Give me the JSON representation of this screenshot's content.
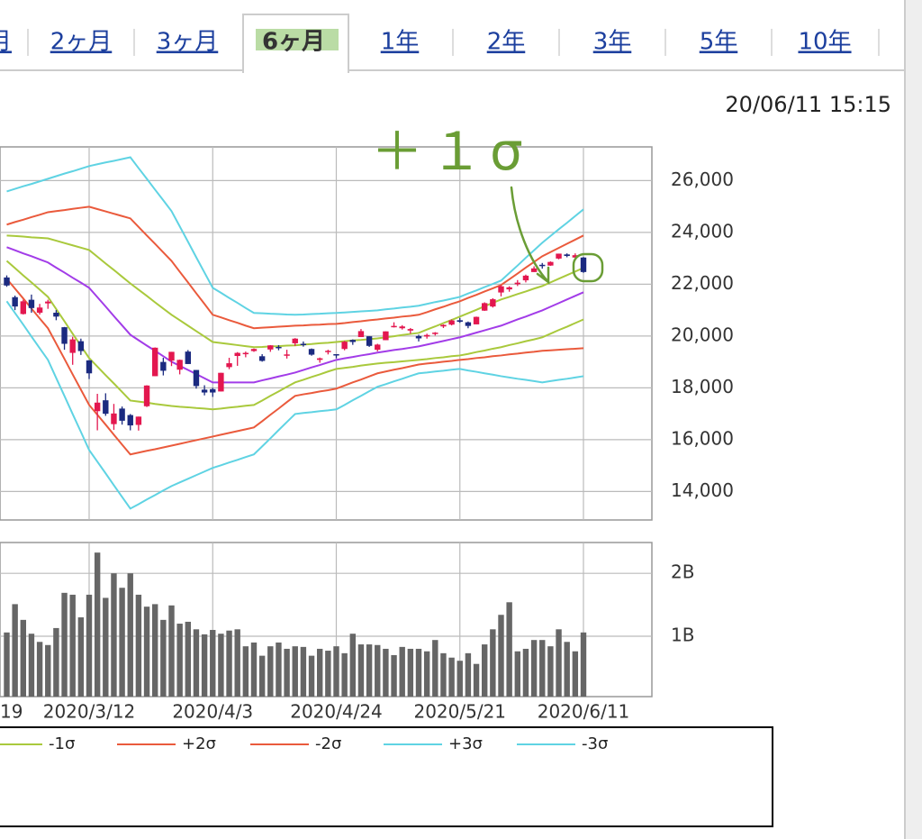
{
  "tabs": [
    "月",
    "2ヶ月",
    "3ヶ月",
    "6ヶ月",
    "1年",
    "2年",
    "3年",
    "5年",
    "10年"
  ],
  "active_tab": 3,
  "timestamp": "20/06/11 15:15",
  "annotation": "＋１σ",
  "chart_data": {
    "type": "candlestick",
    "categories": [
      "19",
      null,
      null,
      null,
      null,
      null,
      null,
      null,
      null,
      null,
      null,
      null,
      null,
      null,
      null,
      "2020/3/12",
      null,
      null,
      null,
      null,
      null,
      null,
      null,
      null,
      null,
      null,
      null,
      null,
      null,
      null,
      "2020/4/3",
      null,
      null,
      null,
      null,
      null,
      null,
      null,
      null,
      null,
      null,
      null,
      null,
      null,
      null,
      "2020/4/24",
      null,
      null,
      null,
      null,
      null,
      null,
      null,
      null,
      null,
      null,
      null,
      null,
      null,
      null,
      "2020/5/21",
      null,
      null,
      null,
      null,
      null,
      null,
      null,
      null,
      null,
      null,
      null,
      null,
      null,
      null,
      "2020/6/11"
    ],
    "open": [
      null,
      null,
      null,
      null,
      null,
      22260,
      21500,
      20850,
      21400,
      20900,
      21260,
      20900,
      20340,
      19350,
      19800,
      19060,
      17100,
      17520,
      16600,
      17200,
      16950,
      16570,
      17290,
      18450,
      19000,
      19050,
      18700,
      19400,
      18690,
      17930,
      17950,
      17860,
      18800,
      19230,
      19300,
      19420,
      19220,
      19480,
      19580,
      19270,
      19720,
      19700,
      19500,
      19080,
      19410,
      19300,
      19500,
      19850,
      19960,
      19990,
      19470,
      19840,
      20380,
      20300,
      20210,
      20000,
      19980,
      20090,
      20370,
      20440,
      20610,
      20530,
      20450,
      20980,
      21140,
      21680,
      21800,
      22000,
      22150,
      22470,
      22750,
      22720,
      22990,
      23150,
      23030,
      23030
    ],
    "high": [
      null,
      null,
      null,
      null,
      null,
      22340,
      21560,
      21400,
      21600,
      21240,
      21400,
      21000,
      20350,
      19970,
      19900,
      19070,
      17770,
      17790,
      17380,
      17280,
      16990,
      16890,
      18100,
      19560,
      19160,
      19390,
      19090,
      19460,
      18690,
      18100,
      18000,
      18580,
      19160,
      19380,
      19400,
      19520,
      19300,
      19650,
      19650,
      19470,
      19920,
      19790,
      19520,
      19170,
      19470,
      19300,
      19810,
      19870,
      20270,
      19990,
      19700,
      20180,
      20530,
      20420,
      20310,
      20050,
      20090,
      20150,
      20450,
      20640,
      20700,
      20560,
      20750,
      21300,
      21460,
      21960,
      21920,
      22160,
      22370,
      22690,
      22820,
      22880,
      23180,
      23190,
      23190,
      23050
    ],
    "low": [
      null,
      null,
      null,
      null,
      null,
      21900,
      21000,
      20830,
      20900,
      20830,
      21050,
      20610,
      19470,
      18890,
      19270,
      18340,
      16360,
      16920,
      16380,
      16580,
      16360,
      16350,
      17260,
      18450,
      18480,
      18840,
      18520,
      18920,
      17970,
      17710,
      17650,
      17860,
      18720,
      18850,
      19180,
      19390,
      19010,
      19390,
      19450,
      19130,
      19620,
      19590,
      19240,
      18970,
      19290,
      19140,
      19450,
      19660,
      19960,
      19580,
      19410,
      19840,
      20330,
      20250,
      20090,
      19790,
      19900,
      20020,
      20310,
      20410,
      20510,
      20300,
      20450,
      20970,
      21100,
      21530,
      21710,
      21930,
      22070,
      22470,
      22600,
      22710,
      22960,
      23040,
      23000,
      22440
    ],
    "close": [
      null,
      null,
      null,
      null,
      null,
      21950,
      21140,
      21340,
      21080,
      21100,
      21330,
      20750,
      19700,
      19870,
      19420,
      18560,
      17430,
      17000,
      17010,
      16730,
      16550,
      16890,
      18090,
      19550,
      18660,
      19390,
      19080,
      18920,
      18070,
      17820,
      17820,
      18580,
      18950,
      19350,
      19350,
      19500,
      19040,
      19640,
      19550,
      19290,
      19900,
      19670,
      19280,
      19140,
      19430,
      19260,
      19780,
      19770,
      20190,
      19620,
      19670,
      20180,
      20390,
      20370,
      20270,
      19910,
      20040,
      20130,
      20430,
      20600,
      20550,
      20390,
      20740,
      21270,
      21420,
      21920,
      21880,
      22060,
      22330,
      22610,
      22700,
      22860,
      23180,
      23090,
      23120,
      22470
    ],
    "up_color": "#e3174f",
    "down_color": "#1b2a80",
    "series": [
      {
        "color": "#a23ce8",
        "values": [
          null,
          null,
          null,
          null,
          null,
          23430,
          23310,
          23190,
          23080,
          22960,
          22840,
          22640,
          22450,
          22250,
          22060,
          21860,
          21500,
          21140,
          20770,
          20410,
          20050,
          19840,
          19630,
          19430,
          19220,
          19010,
          18850,
          18690,
          18530,
          18370,
          18210,
          18210,
          18210,
          18210,
          18210,
          18210,
          18290,
          18360,
          18440,
          18510,
          18590,
          18690,
          18790,
          18880,
          18980,
          19080,
          19140,
          19190,
          19250,
          19300,
          19360,
          19410,
          19460,
          19500,
          19550,
          19600,
          19670,
          19740,
          19810,
          19880,
          19950,
          20040,
          20130,
          20220,
          20310,
          20400,
          20520,
          20640,
          20750,
          20870,
          20990,
          21130,
          21270,
          21410,
          21550,
          21690
        ]
      },
      {
        "color": "#a9c93c",
        "values": [
          null,
          null,
          null,
          null,
          null,
          23880,
          23860,
          23840,
          23810,
          23790,
          23770,
          23680,
          23590,
          23500,
          23410,
          23320,
          23060,
          22800,
          22550,
          22290,
          22030,
          21790,
          21550,
          21300,
          21060,
          20820,
          20610,
          20400,
          20190,
          19980,
          19770,
          19730,
          19690,
          19650,
          19610,
          19570,
          19580,
          19600,
          19610,
          19630,
          19640,
          19670,
          19690,
          19720,
          19740,
          19770,
          19800,
          19830,
          19850,
          19880,
          19910,
          19950,
          19990,
          20040,
          20080,
          20120,
          20250,
          20370,
          20500,
          20620,
          20750,
          20880,
          21010,
          21150,
          21280,
          21410,
          21510,
          21620,
          21720,
          21830,
          21930,
          22070,
          22210,
          22350,
          22490,
          22630
        ]
      },
      {
        "name": "-1σ",
        "color": "#a9c93c",
        "values": [
          null,
          null,
          null,
          null,
          null,
          22900,
          22620,
          22340,
          22070,
          21790,
          21510,
          21040,
          20570,
          20090,
          19620,
          19150,
          18820,
          18490,
          18170,
          17840,
          17510,
          17470,
          17430,
          17380,
          17340,
          17300,
          17270,
          17250,
          17220,
          17200,
          17170,
          17200,
          17240,
          17270,
          17310,
          17340,
          17510,
          17690,
          17860,
          18040,
          18210,
          18310,
          18420,
          18520,
          18630,
          18730,
          18770,
          18810,
          18860,
          18900,
          18940,
          18970,
          18990,
          19020,
          19050,
          19080,
          19110,
          19150,
          19180,
          19220,
          19250,
          19310,
          19380,
          19440,
          19510,
          19570,
          19650,
          19720,
          19800,
          19870,
          19950,
          20090,
          20230,
          20360,
          20500,
          20640
        ]
      },
      {
        "name": "+2σ",
        "color": "#ea5a3c",
        "values": [
          null,
          null,
          null,
          null,
          null,
          24300,
          24400,
          24490,
          24590,
          24680,
          24780,
          24820,
          24860,
          24910,
          24950,
          24990,
          24900,
          24810,
          24720,
          24630,
          24540,
          24210,
          23880,
          23560,
          23230,
          22900,
          22480,
          22070,
          21650,
          21240,
          20820,
          20720,
          20610,
          20510,
          20400,
          20300,
          20320,
          20340,
          20360,
          20380,
          20400,
          20410,
          20430,
          20440,
          20460,
          20470,
          20500,
          20540,
          20570,
          20610,
          20640,
          20680,
          20710,
          20750,
          20780,
          20820,
          20920,
          21030,
          21130,
          21240,
          21340,
          21470,
          21590,
          21720,
          21840,
          21970,
          22190,
          22410,
          22640,
          22860,
          23080,
          23240,
          23400,
          23560,
          23720,
          23880
        ]
      },
      {
        "name": "-2σ",
        "color": "#ea5a3c",
        "values": [
          null,
          null,
          null,
          null,
          null,
          22210,
          21830,
          21450,
          21060,
          20680,
          20300,
          19710,
          19120,
          18520,
          17930,
          17340,
          16960,
          16580,
          16190,
          15810,
          15430,
          15500,
          15570,
          15630,
          15700,
          15770,
          15840,
          15910,
          15980,
          16050,
          16120,
          16190,
          16260,
          16330,
          16400,
          16470,
          16710,
          16960,
          17200,
          17450,
          17690,
          17750,
          17800,
          17860,
          17910,
          17970,
          18090,
          18210,
          18320,
          18440,
          18560,
          18630,
          18700,
          18760,
          18830,
          18900,
          18940,
          18970,
          19010,
          19040,
          19080,
          19110,
          19150,
          19180,
          19220,
          19250,
          19290,
          19320,
          19360,
          19390,
          19430,
          19450,
          19470,
          19490,
          19510,
          19530
        ]
      },
      {
        "name": "+3σ",
        "color": "#5fd3e3",
        "values": [
          null,
          null,
          null,
          null,
          null,
          25580,
          25680,
          25780,
          25870,
          25970,
          26070,
          26170,
          26270,
          26360,
          26460,
          26560,
          26630,
          26700,
          26760,
          26830,
          26900,
          26480,
          26070,
          25650,
          25240,
          24820,
          24230,
          23640,
          23040,
          22450,
          21860,
          21670,
          21470,
          21280,
          21080,
          20890,
          20880,
          20860,
          20850,
          20830,
          20820,
          20830,
          20850,
          20860,
          20880,
          20890,
          20910,
          20930,
          20950,
          20970,
          20990,
          21030,
          21060,
          21100,
          21130,
          21170,
          21240,
          21310,
          21370,
          21440,
          21510,
          21640,
          21760,
          21890,
          22010,
          22140,
          22430,
          22720,
          23020,
          23310,
          23600,
          23860,
          24120,
          24370,
          24630,
          24890
        ]
      },
      {
        "name": "-3σ",
        "color": "#5fd3e3",
        "values": [
          null,
          null,
          null,
          null,
          null,
          21340,
          20890,
          20440,
          19980,
          19530,
          19080,
          18380,
          17690,
          16990,
          16300,
          15600,
          15150,
          14700,
          14240,
          13790,
          13340,
          13510,
          13690,
          13860,
          14040,
          14210,
          14350,
          14490,
          14630,
          14770,
          14910,
          15010,
          15120,
          15220,
          15330,
          15430,
          15740,
          16050,
          16370,
          16680,
          16990,
          17030,
          17060,
          17100,
          17130,
          17170,
          17340,
          17520,
          17690,
          17870,
          18040,
          18140,
          18250,
          18350,
          18460,
          18560,
          18590,
          18630,
          18660,
          18700,
          18730,
          18670,
          18620,
          18560,
          18510,
          18450,
          18400,
          18350,
          18310,
          18260,
          18210,
          18260,
          18310,
          18350,
          18400,
          18450
        ]
      }
    ],
    "ylim": [
      12900,
      27300
    ],
    "yticks": [
      {
        "value": 14000,
        "label": "14,000"
      },
      {
        "value": 16000,
        "label": "16,000"
      },
      {
        "value": 18000,
        "label": "18,000"
      },
      {
        "value": 20000,
        "label": "20,000"
      },
      {
        "value": 22000,
        "label": "22,000"
      },
      {
        "value": 24000,
        "label": "24,000"
      },
      {
        "value": 26000,
        "label": "26,000"
      }
    ],
    "grid": true,
    "volume": {
      "color": "#666666",
      "values": [
        null,
        null,
        null,
        null,
        null,
        1.06,
        1.51,
        1.26,
        1.04,
        0.91,
        0.86,
        1.13,
        1.69,
        1.66,
        1.3,
        1.66,
        2.33,
        1.61,
        2.0,
        1.77,
        2.0,
        1.66,
        1.47,
        1.51,
        1.26,
        1.49,
        1.2,
        1.23,
        1.11,
        1.03,
        1.1,
        1.04,
        1.09,
        1.11,
        0.84,
        0.9,
        0.69,
        0.84,
        0.9,
        0.8,
        0.84,
        0.83,
        0.69,
        0.8,
        0.77,
        0.84,
        0.73,
        1.04,
        0.87,
        0.87,
        0.86,
        0.8,
        0.7,
        0.83,
        0.8,
        0.8,
        0.76,
        0.94,
        0.73,
        0.66,
        0.61,
        0.73,
        0.56,
        0.87,
        1.11,
        1.34,
        1.54,
        0.76,
        0.8,
        0.94,
        0.94,
        0.84,
        1.11,
        0.91,
        0.76,
        1.06
      ],
      "ylim": [
        0.04,
        2.49
      ],
      "yticks": [
        {
          "value": 1,
          "label": "1B"
        },
        {
          "value": 2,
          "label": "2B"
        }
      ]
    }
  }
}
